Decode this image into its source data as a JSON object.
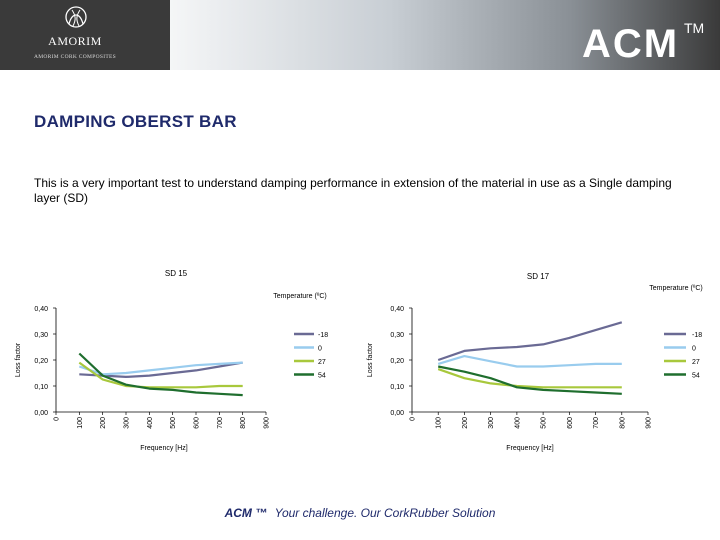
{
  "header": {
    "logo_name": "AMORIM",
    "logo_subtitle": "AMORIM CORK COMPOSITES",
    "brand": "ACM",
    "trademark": "TM",
    "brand_dark": "#3a3a3a",
    "brand_light": "#b8c0c8"
  },
  "page": {
    "title": "DAMPING OBERST BAR",
    "description": "This is a very important test to understand damping performance in extension of the material in use as a Single damping layer (SD)"
  },
  "footer": {
    "brand": "ACM ™",
    "slogan": "Your challenge. Our CorkRubber Solution"
  },
  "chart_data": [
    {
      "type": "line",
      "title": "SD 15",
      "xlabel": "Frequency [Hz]",
      "ylabel": "Loss factor",
      "legend_title": "Temperature (ºC)",
      "y_ticks": [
        "0,00",
        "0,10",
        "0,20",
        "0,30",
        "0,40"
      ],
      "x_ticks": [
        "0",
        "100",
        "200",
        "300",
        "400",
        "500",
        "600",
        "700",
        "800",
        "900"
      ],
      "xlim": [
        0,
        900
      ],
      "ylim": [
        0,
        0.4
      ],
      "series": [
        {
          "name": "-18",
          "color": "#6a6a94",
          "x": [
            100,
            200,
            300,
            400,
            500,
            600,
            700,
            800
          ],
          "y": [
            0.145,
            0.14,
            0.135,
            0.14,
            0.15,
            0.16,
            0.175,
            0.19
          ]
        },
        {
          "name": "0",
          "color": "#99ccee",
          "x": [
            100,
            200,
            300,
            400,
            500,
            600,
            700,
            800
          ],
          "y": [
            0.175,
            0.145,
            0.15,
            0.16,
            0.17,
            0.18,
            0.185,
            0.19
          ]
        },
        {
          "name": "27",
          "color": "#a8c83c",
          "x": [
            100,
            200,
            300,
            400,
            500,
            600,
            700,
            800
          ],
          "y": [
            0.19,
            0.125,
            0.1,
            0.095,
            0.095,
            0.095,
            0.1,
            0.1
          ]
        },
        {
          "name": "54",
          "color": "#1f6e2e",
          "x": [
            100,
            200,
            300,
            400,
            500,
            600,
            700,
            800
          ],
          "y": [
            0.225,
            0.14,
            0.105,
            0.09,
            0.085,
            0.075,
            0.07,
            0.065
          ]
        }
      ]
    },
    {
      "type": "line",
      "title": "SD 17",
      "xlabel": "Frequency [Hz]",
      "ylabel": "Loss factor",
      "legend_title": "Temperature (ºC)",
      "y_ticks": [
        "0,00",
        "0,10",
        "0,20",
        "0,30",
        "0,40"
      ],
      "x_ticks": [
        "0",
        "100",
        "200",
        "300",
        "400",
        "500",
        "600",
        "700",
        "800",
        "900"
      ],
      "xlim": [
        0,
        900
      ],
      "ylim": [
        0,
        0.4
      ],
      "series": [
        {
          "name": "-18",
          "color": "#6a6a94",
          "x": [
            100,
            200,
            300,
            400,
            500,
            600,
            700,
            800
          ],
          "y": [
            0.2,
            0.235,
            0.245,
            0.25,
            0.26,
            0.285,
            0.315,
            0.345
          ]
        },
        {
          "name": "0",
          "color": "#99ccee",
          "x": [
            100,
            200,
            300,
            400,
            500,
            600,
            700,
            800
          ],
          "y": [
            0.185,
            0.215,
            0.195,
            0.175,
            0.175,
            0.18,
            0.185,
            0.185
          ]
        },
        {
          "name": "27",
          "color": "#a8c83c",
          "x": [
            100,
            200,
            300,
            400,
            500,
            600,
            700,
            800
          ],
          "y": [
            0.165,
            0.13,
            0.11,
            0.1,
            0.095,
            0.095,
            0.095,
            0.095
          ]
        },
        {
          "name": "54",
          "color": "#1f6e2e",
          "x": [
            100,
            200,
            300,
            400,
            500,
            600,
            700,
            800
          ],
          "y": [
            0.175,
            0.155,
            0.13,
            0.095,
            0.085,
            0.08,
            0.075,
            0.07
          ]
        }
      ]
    }
  ]
}
